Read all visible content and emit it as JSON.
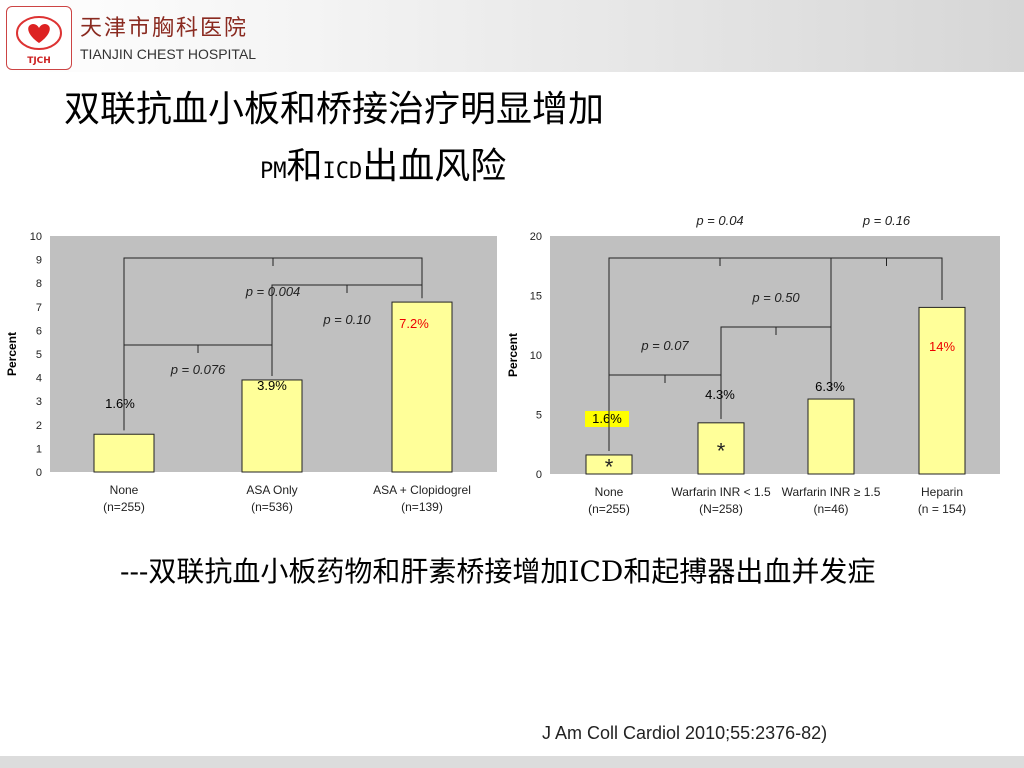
{
  "header": {
    "hospital_name_cn": "天津市胸科医院",
    "hospital_name_en": "TIANJIN CHEST HOSPITAL",
    "logo_text": "TJCH"
  },
  "title": {
    "line1": "双联抗血小板和桥接治疗明显增加",
    "line2_a": "PM",
    "line2_b": "和",
    "line2_c": "ICD",
    "line2_d": "出血风险"
  },
  "note": "---双联抗血小板药物和肝素桥接增加ICD和起搏器出血并发症",
  "citation": "J Am Coll Cardiol 2010;55:2376-82)",
  "colors": {
    "bar_fill": "#ffff99",
    "plot_bg": "#c0c0c0",
    "highlight_label": "#ffff00",
    "red_label": "#ee0000"
  },
  "chart_data": [
    {
      "type": "bar",
      "ylabel": "Percent",
      "ylim": [
        0,
        10
      ],
      "yticks": [
        0,
        1,
        2,
        3,
        4,
        5,
        6,
        7,
        8,
        9,
        10
      ],
      "categories": [
        "None (n=255)",
        "ASA Only (n=536)",
        "ASA + Clopidogrel (n=139)"
      ],
      "category_lines": [
        [
          "None",
          "(n=255)"
        ],
        [
          "ASA Only",
          "(n=536)"
        ],
        [
          "ASA + Clopidogrel",
          "(n=139)"
        ]
      ],
      "values": [
        1.6,
        3.9,
        7.2
      ],
      "value_labels": [
        "1.6%",
        "3.9%",
        "7.2%"
      ],
      "comparisons": [
        {
          "between": [
            0,
            1
          ],
          "label": "p = 0.076"
        },
        {
          "between": [
            1,
            2
          ],
          "label": "p = 0.10"
        },
        {
          "between": [
            0,
            2
          ],
          "label": "p = 0.004"
        }
      ],
      "grid": false
    },
    {
      "type": "bar",
      "ylabel": "Percent",
      "ylim": [
        0,
        20
      ],
      "yticks": [
        0,
        5,
        10,
        15,
        20
      ],
      "categories": [
        "None (n=255)",
        "Warfarin INR < 1.5 (N=258)",
        "Warfarin INR ≥ 1.5 (n=46)",
        "Heparin (n = 154)"
      ],
      "category_lines": [
        [
          "None",
          "(n=255)"
        ],
        [
          "Warfarin INR < 1.5",
          "(N=258)"
        ],
        [
          "Warfarin INR ≥ 1.5",
          "(n=46)"
        ],
        [
          "Heparin",
          "(n = 154)"
        ]
      ],
      "values": [
        1.6,
        4.3,
        6.3,
        14
      ],
      "value_labels": [
        "1.6%",
        "4.3%",
        "6.3%",
        "14%"
      ],
      "bar_markers": [
        "*",
        "*",
        "",
        ""
      ],
      "comparisons": [
        {
          "between": [
            0,
            1
          ],
          "label": "p = 0.07"
        },
        {
          "between": [
            1,
            2
          ],
          "label": "p = 0.50"
        },
        {
          "between": [
            0,
            2
          ],
          "label": "p = 0.04"
        },
        {
          "between": [
            2,
            3
          ],
          "label": "p = 0.16"
        }
      ],
      "grid": false
    }
  ]
}
